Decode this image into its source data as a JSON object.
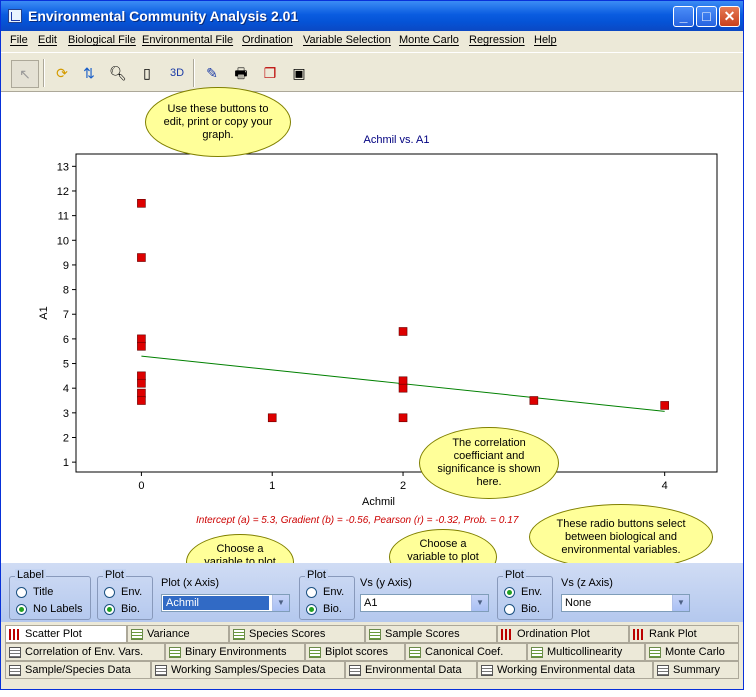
{
  "window": {
    "title": "Environmental Community Analysis 2.01"
  },
  "menu": [
    "File",
    "Edit",
    "Biological File",
    "Environmental File",
    "Ordination",
    "Variable Selection",
    "Monte Carlo",
    "Regression",
    "Help"
  ],
  "toolbar": {
    "three_d_label": "3D"
  },
  "callouts": {
    "toolbar_tip": "Use these buttons to edit, print or copy your graph.",
    "correlation_tip": "The correlation coefficiant and significance is shown here.",
    "x_variable_tip": "Choose a variable to plot here.",
    "y_variable_tip": "Choose a variable to plot here.",
    "radio_tip": "These radio buttons select between biological and environmental variables."
  },
  "chart_data": {
    "type": "scatter",
    "title": "Achmil vs. A1",
    "xlabel": "Achmil",
    "ylabel": "A1",
    "xlim": [
      -0.5,
      4.4
    ],
    "ylim": [
      0.6,
      13.5
    ],
    "xticks": [
      0,
      1,
      2,
      3,
      4
    ],
    "yticks": [
      1,
      2,
      3,
      4,
      5,
      6,
      7,
      8,
      9,
      10,
      11,
      12,
      13
    ],
    "xtick_labels": [
      "0",
      "1",
      "2",
      "",
      "4"
    ],
    "points": [
      {
        "x": 0,
        "y": 11.5
      },
      {
        "x": 0,
        "y": 9.3
      },
      {
        "x": 0,
        "y": 6.0
      },
      {
        "x": 0,
        "y": 5.7
      },
      {
        "x": 0,
        "y": 4.5
      },
      {
        "x": 0,
        "y": 4.2
      },
      {
        "x": 0,
        "y": 3.8
      },
      {
        "x": 0,
        "y": 3.5
      },
      {
        "x": 1,
        "y": 2.8
      },
      {
        "x": 2,
        "y": 6.3
      },
      {
        "x": 2,
        "y": 4.3
      },
      {
        "x": 2,
        "y": 4.0
      },
      {
        "x": 2,
        "y": 2.8
      },
      {
        "x": 3,
        "y": 3.5
      },
      {
        "x": 4,
        "y": 3.3
      }
    ],
    "regression": {
      "intercept": 5.3,
      "gradient": -0.56,
      "x_range": [
        0,
        4
      ]
    },
    "stats_text": "Intercept (a) = 5.3, Gradient (b) = -0.56, Pearson (r) = -0.32, Prob. = 0.17",
    "marker_color": "#dd0000",
    "line_color": "#008000",
    "title_color": "#000080",
    "stats_color": "#cc0000"
  },
  "controls": {
    "label_group": {
      "legend": "Label",
      "options": [
        "Title",
        "No Labels"
      ],
      "selected": 1
    },
    "plot_group_x": {
      "legend": "Plot",
      "options": [
        "Env.",
        "Bio."
      ],
      "selected": 1
    },
    "x_axis": {
      "label": "Plot (x Axis)",
      "value": "Achmil"
    },
    "plot_group_y": {
      "legend": "Plot",
      "options": [
        "Env.",
        "Bio."
      ],
      "selected": 1
    },
    "y_axis": {
      "label": "Vs (y Axis)",
      "value": "A1"
    },
    "plot_group_z": {
      "legend": "Plot",
      "options": [
        "Env.",
        "Bio."
      ],
      "selected": 0
    },
    "z_axis": {
      "label": "Vs (z Axis)",
      "value": "None"
    }
  },
  "tabs": {
    "row1": [
      "Scatter Plot",
      "Variance",
      "Species Scores",
      "Sample Scores",
      "Ordination Plot",
      "Rank Plot"
    ],
    "row2": [
      "Correlation of Env. Vars.",
      "Binary Environments",
      "Biplot scores",
      "Canonical Coef.",
      "Multicollinearity",
      "Monte Carlo"
    ],
    "row3": [
      "Sample/Species Data",
      "Working Samples/Species Data",
      "Environmental Data",
      "Working Environmental data",
      "Summary"
    ]
  }
}
